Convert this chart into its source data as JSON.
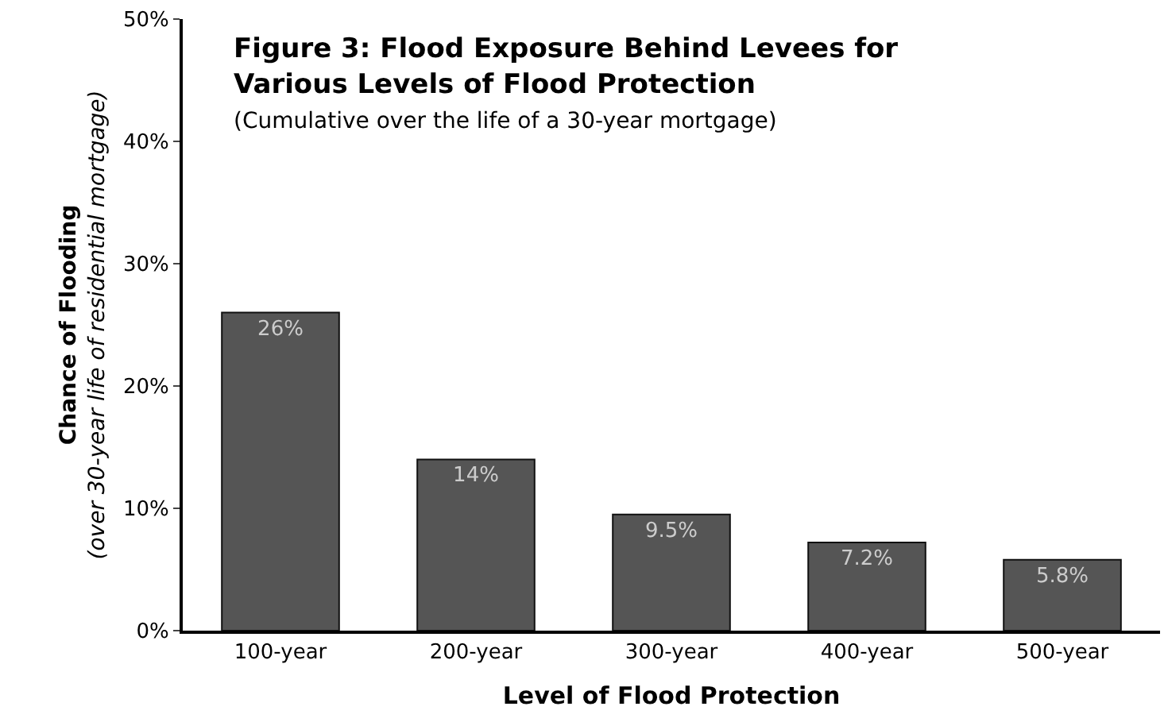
{
  "chart_data": {
    "type": "bar",
    "title": "Figure 3: Flood Exposure Behind Levees for Various Levels of Flood Protection",
    "subtitle": "(Cumulative over the life of a 30-year mortgage)",
    "xlabel": "Level of Flood Protection",
    "ylabel": "Chance of Flooding",
    "annotations": [
      "(over 30-year life of residential mortgage)"
    ],
    "categories": [
      "100-year",
      "200-year",
      "300-year",
      "400-year",
      "500-year"
    ],
    "values": [
      26,
      14,
      9.5,
      7.2,
      5.8
    ],
    "value_labels": [
      "26%",
      "14%",
      "9.5%",
      "7.2%",
      "5.8%"
    ],
    "color": "#555555",
    "ylim": [
      0,
      50
    ],
    "yticks": [
      {
        "value": 0,
        "label": "0%"
      },
      {
        "value": 10,
        "label": "10%"
      },
      {
        "value": 20,
        "label": "20%"
      },
      {
        "value": 30,
        "label": "30%"
      },
      {
        "value": 40,
        "label": "40%"
      },
      {
        "value": 50,
        "label": "50%"
      }
    ]
  }
}
